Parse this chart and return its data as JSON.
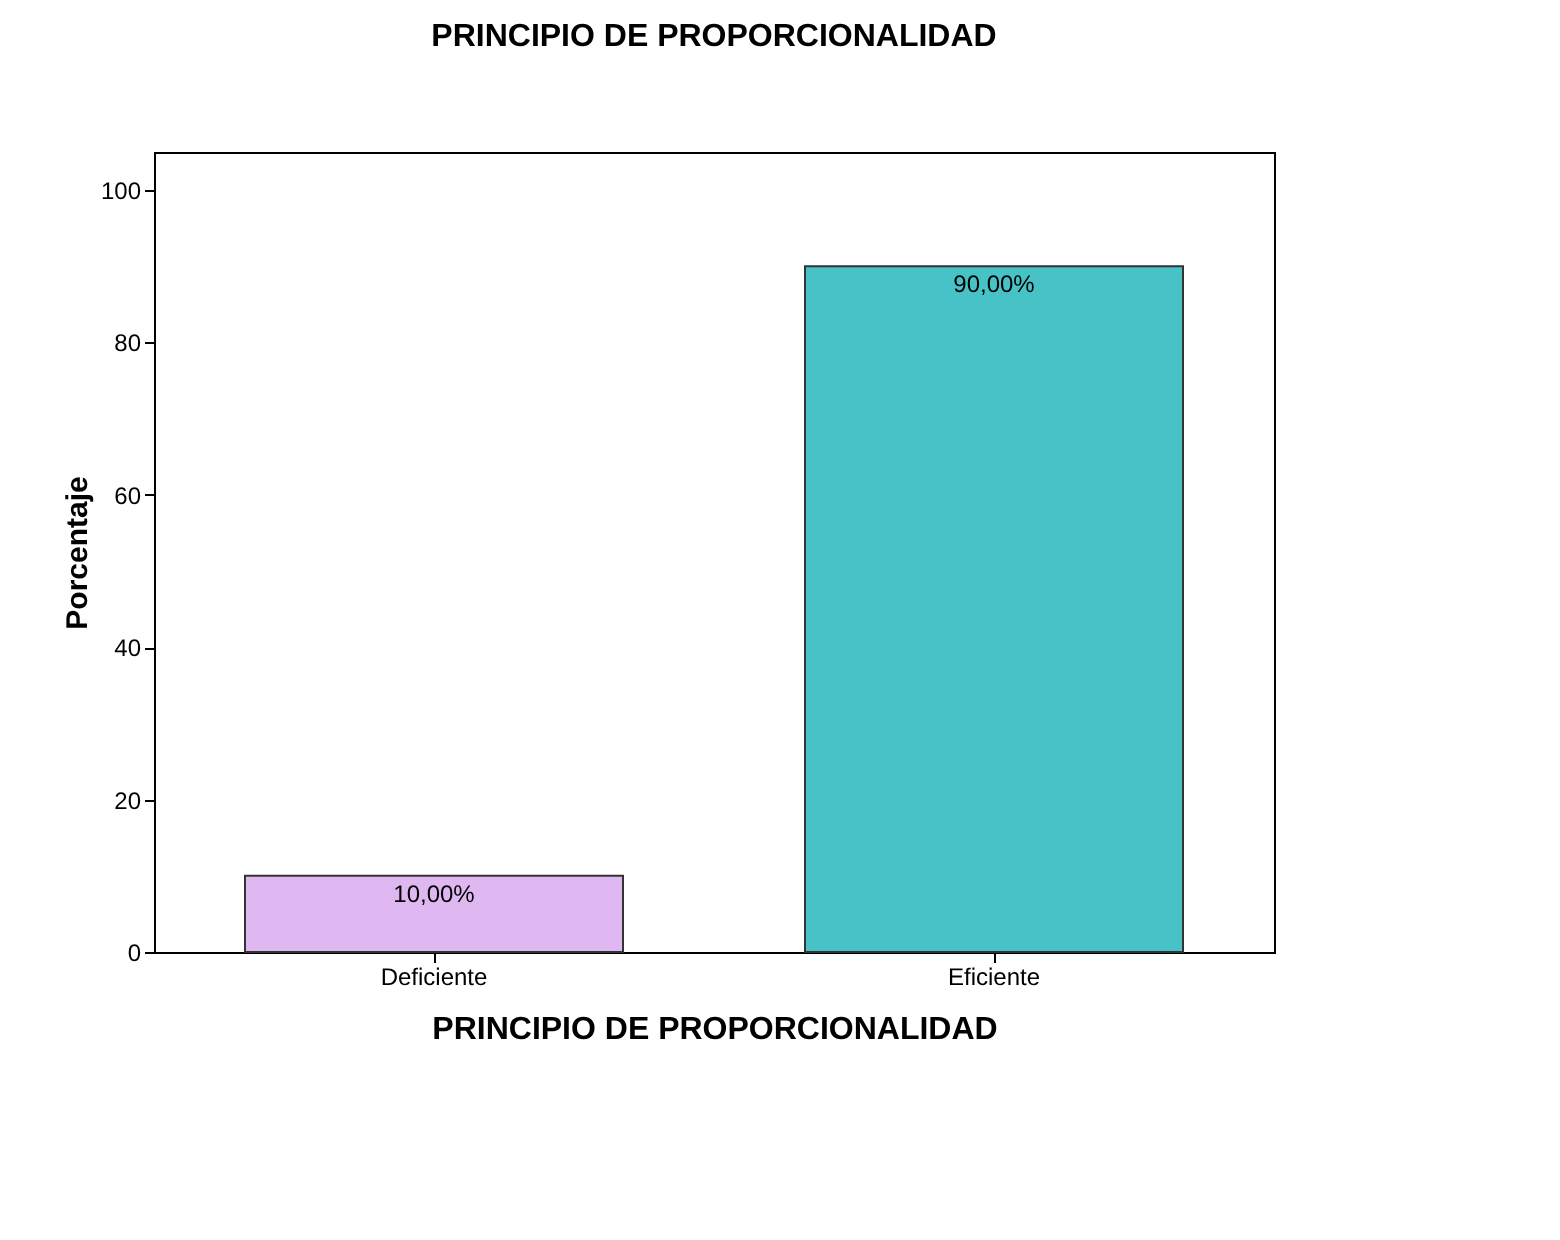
{
  "chart_data": {
    "type": "bar",
    "title": "PRINCIPIO DE PROPORCIONALIDAD",
    "xlabel": "PRINCIPIO DE PROPORCIONALIDAD",
    "ylabel": "Porcentaje",
    "categories": [
      "Deficiente",
      "Eficiente"
    ],
    "values": [
      10,
      90
    ],
    "colors": [
      "#dfb8f2",
      "#47c3c7"
    ],
    "value_labels": [
      "10,00%",
      "90,00%"
    ],
    "ylim": [
      0,
      105
    ],
    "yticks": [
      0,
      20,
      40,
      60,
      80,
      100
    ],
    "grid": false
  }
}
